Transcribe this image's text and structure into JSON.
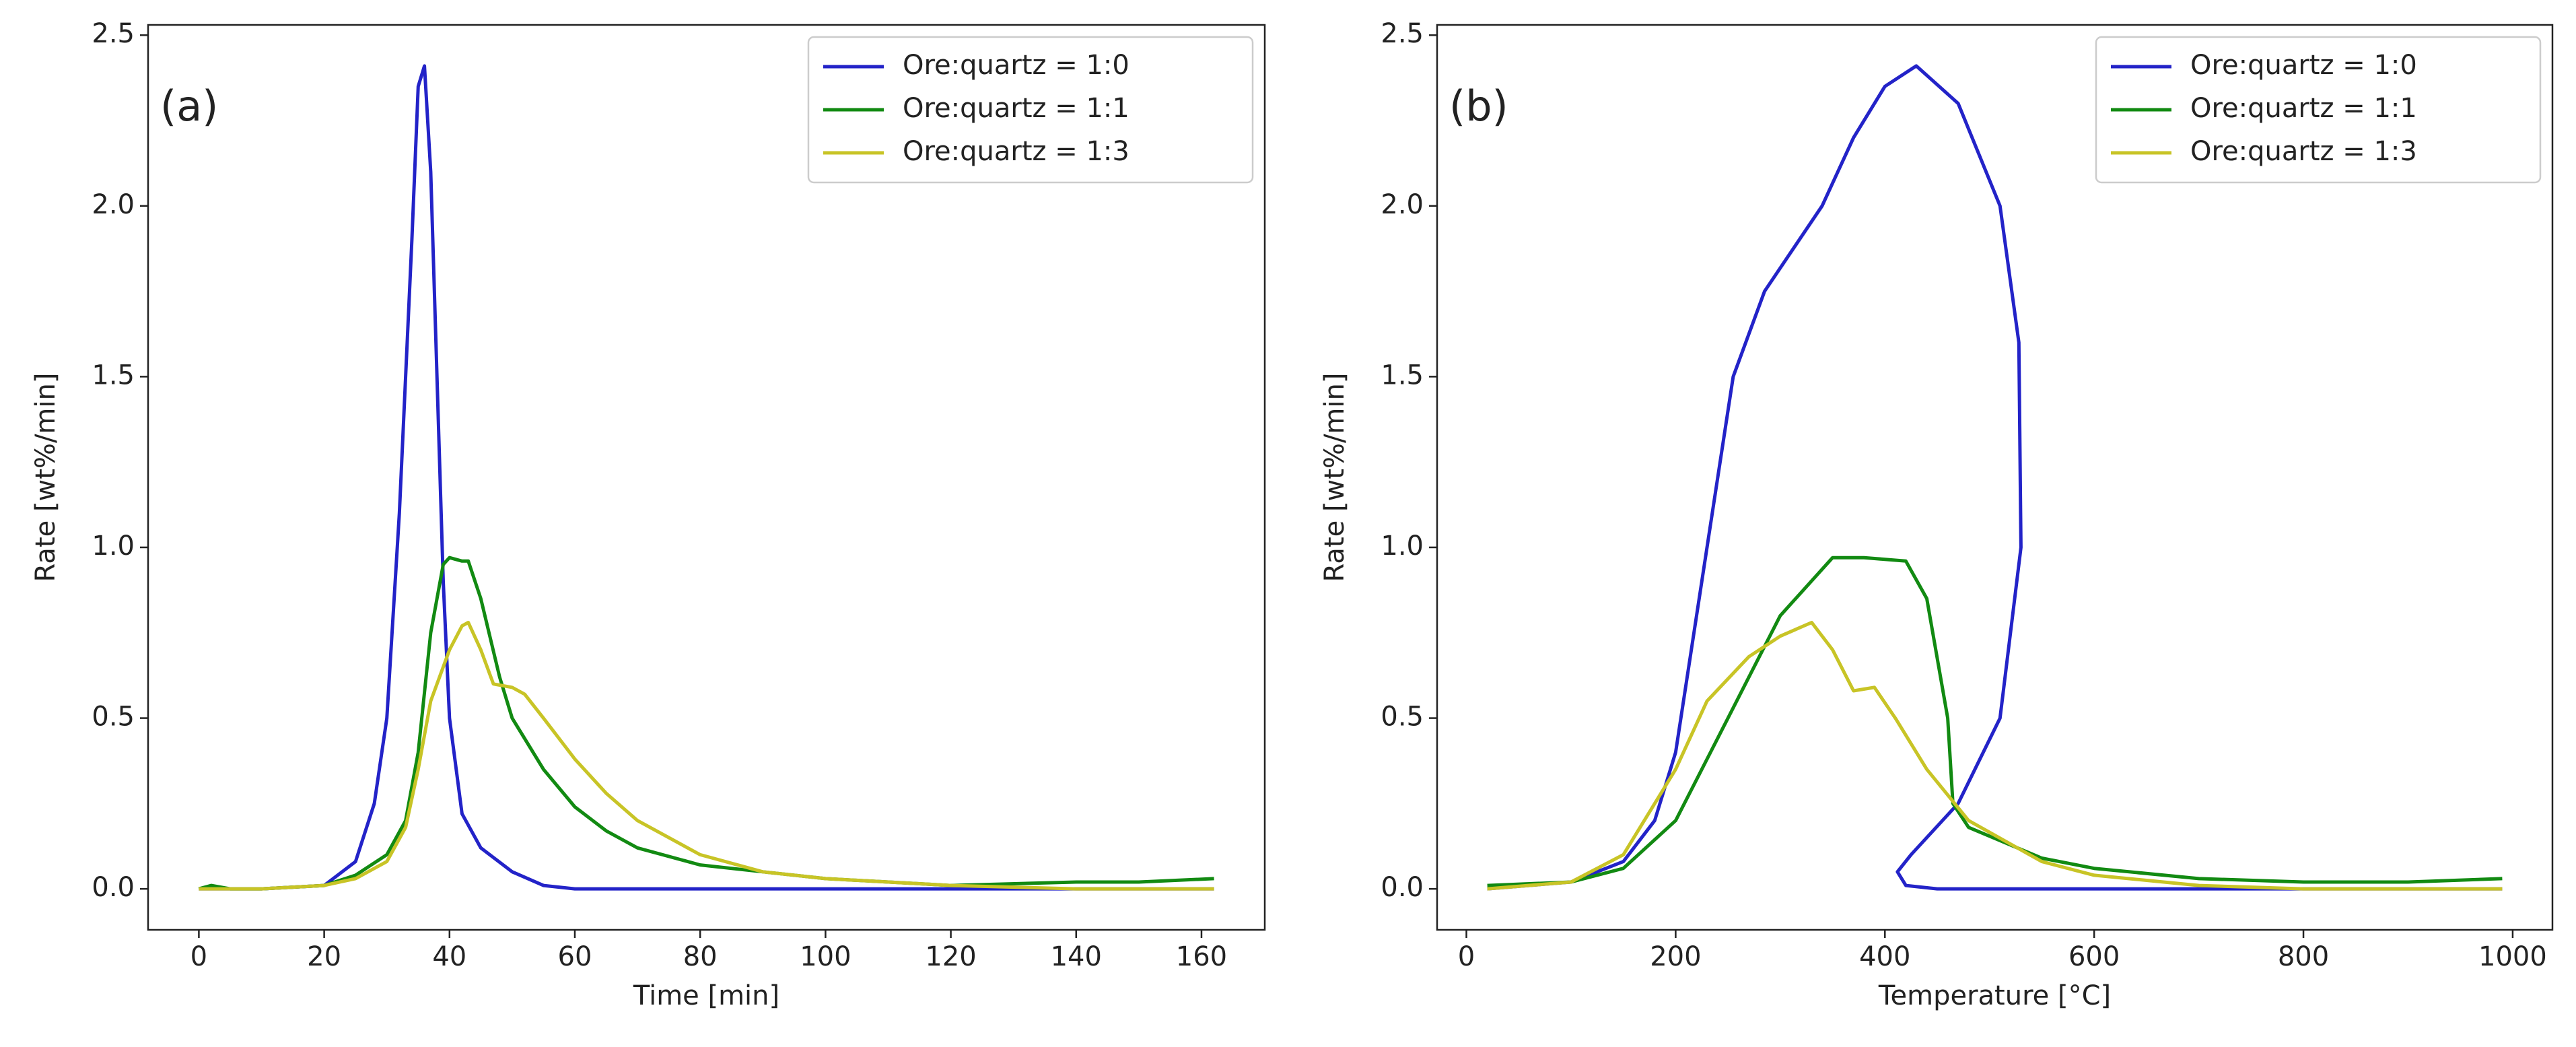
{
  "chart_data": [
    {
      "type": "line",
      "annotation": "(a)",
      "xlabel": "Time [min]",
      "ylabel": "Rate [wt%/min]",
      "xlim": [
        -8.1,
        170.1
      ],
      "ylim": [
        -0.12,
        2.53
      ],
      "xticks": [
        0,
        20,
        40,
        60,
        80,
        100,
        120,
        140,
        160
      ],
      "yticks": [
        {
          "value": 0,
          "label": "0.0"
        },
        0.5,
        {
          "value": 1,
          "label": "1.0"
        },
        1.5,
        {
          "value": 2,
          "label": "2.0"
        },
        2.5
      ],
      "legend": "upper right",
      "series": [
        {
          "name": "Ore:quartz = 1:0",
          "color": "#2323c8",
          "x": [
            0,
            10,
            20,
            25,
            28,
            30,
            32,
            34,
            35,
            36,
            37,
            38,
            39,
            40,
            42,
            45,
            50,
            55,
            60,
            80,
            100,
            120,
            140,
            162
          ],
          "values": [
            0,
            0,
            0.01,
            0.08,
            0.25,
            0.5,
            1.1,
            1.9,
            2.35,
            2.41,
            2.1,
            1.5,
            0.9,
            0.5,
            0.22,
            0.12,
            0.05,
            0.01,
            0,
            0,
            0,
            0,
            0,
            0
          ]
        },
        {
          "name": "Ore:quartz = 1:1",
          "color": "#128a12",
          "x": [
            0,
            2,
            5,
            10,
            20,
            25,
            30,
            33,
            35,
            37,
            39,
            40,
            42,
            43,
            45,
            48,
            50,
            55,
            60,
            65,
            70,
            80,
            90,
            100,
            120,
            140,
            150,
            162
          ],
          "values": [
            0,
            0.01,
            0,
            0,
            0.01,
            0.04,
            0.1,
            0.2,
            0.4,
            0.75,
            0.95,
            0.97,
            0.96,
            0.96,
            0.85,
            0.62,
            0.5,
            0.35,
            0.24,
            0.17,
            0.12,
            0.07,
            0.05,
            0.03,
            0.01,
            0.02,
            0.02,
            0.03
          ]
        },
        {
          "name": "Ore:quartz = 1:3",
          "color": "#c8c426",
          "x": [
            0,
            10,
            20,
            25,
            30,
            33,
            35,
            37,
            39,
            40,
            42,
            43,
            45,
            47,
            50,
            52,
            55,
            60,
            65,
            70,
            80,
            90,
            100,
            120,
            140,
            162
          ],
          "values": [
            0,
            0,
            0.01,
            0.03,
            0.08,
            0.18,
            0.35,
            0.55,
            0.65,
            0.7,
            0.77,
            0.78,
            0.7,
            0.6,
            0.59,
            0.57,
            0.5,
            0.38,
            0.28,
            0.2,
            0.1,
            0.05,
            0.03,
            0.01,
            0,
            0
          ]
        }
      ]
    },
    {
      "type": "line",
      "annotation": "(b)",
      "xlabel": "Temperature [°C]",
      "ylabel": "Rate [wt%/min]",
      "xlim": [
        -28,
        1038
      ],
      "ylim": [
        -0.12,
        2.53
      ],
      "xticks": [
        0,
        200,
        400,
        600,
        800,
        1000
      ],
      "yticks": [
        {
          "value": 0,
          "label": "0.0"
        },
        0.5,
        {
          "value": 1,
          "label": "1.0"
        },
        1.5,
        {
          "value": 2,
          "label": "2.0"
        },
        2.5
      ],
      "legend": "upper right",
      "series": [
        {
          "name": "Ore:quartz = 1:0",
          "color": "#2323c8",
          "x": [
            20,
            100,
            150,
            180,
            200,
            230,
            255,
            285,
            340,
            370,
            400,
            430,
            470,
            510,
            528,
            530,
            510,
            470,
            425,
            412,
            420,
            450,
            990
          ],
          "values": [
            0,
            0.02,
            0.08,
            0.2,
            0.4,
            1.0,
            1.5,
            1.75,
            2.0,
            2.2,
            2.35,
            2.41,
            2.3,
            2.0,
            1.6,
            1.0,
            0.5,
            0.25,
            0.1,
            0.05,
            0.01,
            0,
            0
          ]
        },
        {
          "name": "Ore:quartz = 1:1",
          "color": "#128a12",
          "x": [
            20,
            100,
            150,
            200,
            250,
            300,
            350,
            380,
            420,
            440,
            460,
            465,
            480,
            550,
            600,
            700,
            800,
            900,
            990
          ],
          "values": [
            0.01,
            0.02,
            0.06,
            0.2,
            0.5,
            0.8,
            0.97,
            0.97,
            0.96,
            0.85,
            0.5,
            0.25,
            0.18,
            0.09,
            0.06,
            0.03,
            0.02,
            0.02,
            0.03
          ]
        },
        {
          "name": "Ore:quartz = 1:3",
          "color": "#c8c426",
          "x": [
            20,
            100,
            150,
            200,
            230,
            270,
            300,
            330,
            350,
            370,
            390,
            410,
            440,
            480,
            550,
            600,
            700,
            800,
            990
          ],
          "values": [
            0,
            0.02,
            0.1,
            0.35,
            0.55,
            0.68,
            0.74,
            0.78,
            0.7,
            0.58,
            0.59,
            0.5,
            0.35,
            0.2,
            0.08,
            0.04,
            0.01,
            0,
            0
          ]
        }
      ]
    }
  ]
}
